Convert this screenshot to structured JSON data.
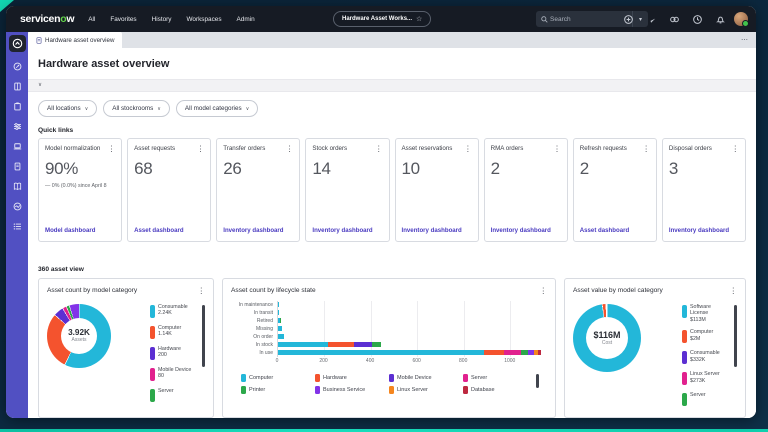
{
  "colors": {
    "accent_teal": "#12d6b2",
    "nav_bg": "#161b24",
    "sidebar_bg": "#5150c2",
    "link": "#4a3bc0",
    "cyan": "#23b7d9",
    "red": "#f4532e",
    "indigo": "#5c2fd2",
    "magenta": "#e1218e",
    "green": "#2ca84a",
    "violet": "#8233e8",
    "orange": "#f5861f",
    "dark_red": "#bd2840"
  },
  "icons": {
    "kebab": "⋮",
    "chevron_down": "∨",
    "star": "☆",
    "ellipsis": "⋯",
    "dropdown_caret": "▾"
  },
  "top_nav": {
    "logo": "servicenow",
    "menu": [
      "All",
      "Favorites",
      "History",
      "Workspaces",
      "Admin"
    ],
    "workspace_pill": "Hardware Asset Works...",
    "search_placeholder": "Search",
    "header_icons": [
      "help",
      "messages",
      "link",
      "history",
      "notifications"
    ]
  },
  "sidebar": {
    "icons": [
      "workspace-home",
      "overview",
      "knowledge",
      "tasks",
      "filters",
      "devices",
      "document",
      "catalog",
      "insights",
      "list"
    ]
  },
  "tabs": {
    "active": "Hardware asset overview"
  },
  "page": {
    "title": "Hardware asset overview"
  },
  "filters": [
    {
      "label": "All locations"
    },
    {
      "label": "All stockrooms"
    },
    {
      "label": "All model categories"
    }
  ],
  "quick_links": {
    "label": "Quick links",
    "cards": [
      {
        "title": "Model normalization",
        "value": "90%",
        "delta": "— 0% (0.0%) since April 8",
        "link": "Model dashboard"
      },
      {
        "title": "Asset requests",
        "value": "68",
        "delta": "",
        "link": "Asset dashboard"
      },
      {
        "title": "Transfer orders",
        "value": "26",
        "delta": "",
        "link": "Inventory dashboard"
      },
      {
        "title": "Stock orders",
        "value": "14",
        "delta": "",
        "link": "Inventory dashboard"
      },
      {
        "title": "Asset reservations",
        "value": "10",
        "delta": "",
        "link": "Inventory dashboard"
      },
      {
        "title": "RMA orders",
        "value": "2",
        "delta": "",
        "link": "Inventory dashboard"
      },
      {
        "title": "Refresh requests",
        "value": "2",
        "delta": "",
        "link": "Asset dashboard"
      },
      {
        "title": "Disposal orders",
        "value": "3",
        "delta": "",
        "link": "Inventory dashboard"
      }
    ]
  },
  "asset_view_label": "360 asset view",
  "chart_data": [
    {
      "type": "pie",
      "title": "Asset count by model category",
      "center_value": "3.92K",
      "center_label": "Assets",
      "slices": [
        {
          "label": "Consumable",
          "display": "2.24K",
          "value": 2240,
          "color": "#23b7d9"
        },
        {
          "label": "Computer",
          "display": "1.14K",
          "value": 1140,
          "color": "#f4532e"
        },
        {
          "label": "Hardware",
          "display": "200",
          "value": 200,
          "color": "#5c2fd2"
        },
        {
          "label": "Mobile Device",
          "display": "80",
          "value": 80,
          "color": "#e1218e"
        },
        {
          "label": "Server",
          "display": "",
          "value": 60,
          "color": "#2ca84a"
        },
        {
          "label": "",
          "display": "",
          "value": 200,
          "color": "#8233e8"
        }
      ]
    },
    {
      "type": "bar",
      "orientation": "horizontal",
      "stacked": true,
      "title": "Asset count by lifecycle state",
      "categories": [
        "In maintenance",
        "In transit",
        "Retired",
        "Missing",
        "On order",
        "In stock",
        "In use"
      ],
      "series": [
        {
          "name": "Computer",
          "color": "#23b7d9",
          "values": [
            2,
            2,
            8,
            16,
            28,
            217,
            890
          ]
        },
        {
          "name": "Hardware",
          "color": "#f4532e",
          "values": [
            0,
            0,
            0,
            0,
            0,
            109,
            85
          ]
        },
        {
          "name": "Mobile Device",
          "color": "#5c2fd2",
          "values": [
            0,
            0,
            0,
            0,
            0,
            79,
            0
          ]
        },
        {
          "name": "Server",
          "color": "#e1218e",
          "values": [
            0,
            0,
            0,
            0,
            0,
            0,
            75
          ]
        },
        {
          "name": "Printer",
          "color": "#2ca84a",
          "values": [
            0,
            0,
            2,
            0,
            0,
            40,
            28
          ]
        },
        {
          "name": "Business Service",
          "color": "#8233e8",
          "values": [
            0,
            0,
            0,
            0,
            0,
            0,
            25
          ]
        },
        {
          "name": "Linux Server",
          "color": "#f5861f",
          "values": [
            0,
            0,
            0,
            0,
            0,
            0,
            18
          ]
        },
        {
          "name": "Database",
          "color": "#bd2840",
          "values": [
            0,
            0,
            0,
            0,
            0,
            0,
            12
          ]
        }
      ],
      "xticks": [
        0,
        200,
        400,
        600,
        800,
        1000
      ],
      "xmax": 1160,
      "legend_position": "bottom"
    },
    {
      "type": "pie",
      "title": "Asset value by model category",
      "center_value": "$116M",
      "center_label": "Cost",
      "slices": [
        {
          "label": "Software License",
          "display": "$113M",
          "value": 113000,
          "color": "#23b7d9"
        },
        {
          "label": "Computer",
          "display": "$2M",
          "value": 2000,
          "color": "#f4532e"
        },
        {
          "label": "Consumable",
          "display": "$332K",
          "value": 332,
          "color": "#5c2fd2"
        },
        {
          "label": "Linux Server",
          "display": "$273K",
          "value": 273,
          "color": "#e1218e"
        },
        {
          "label": "Server",
          "display": "",
          "value": 200,
          "color": "#2ca84a"
        }
      ]
    }
  ]
}
